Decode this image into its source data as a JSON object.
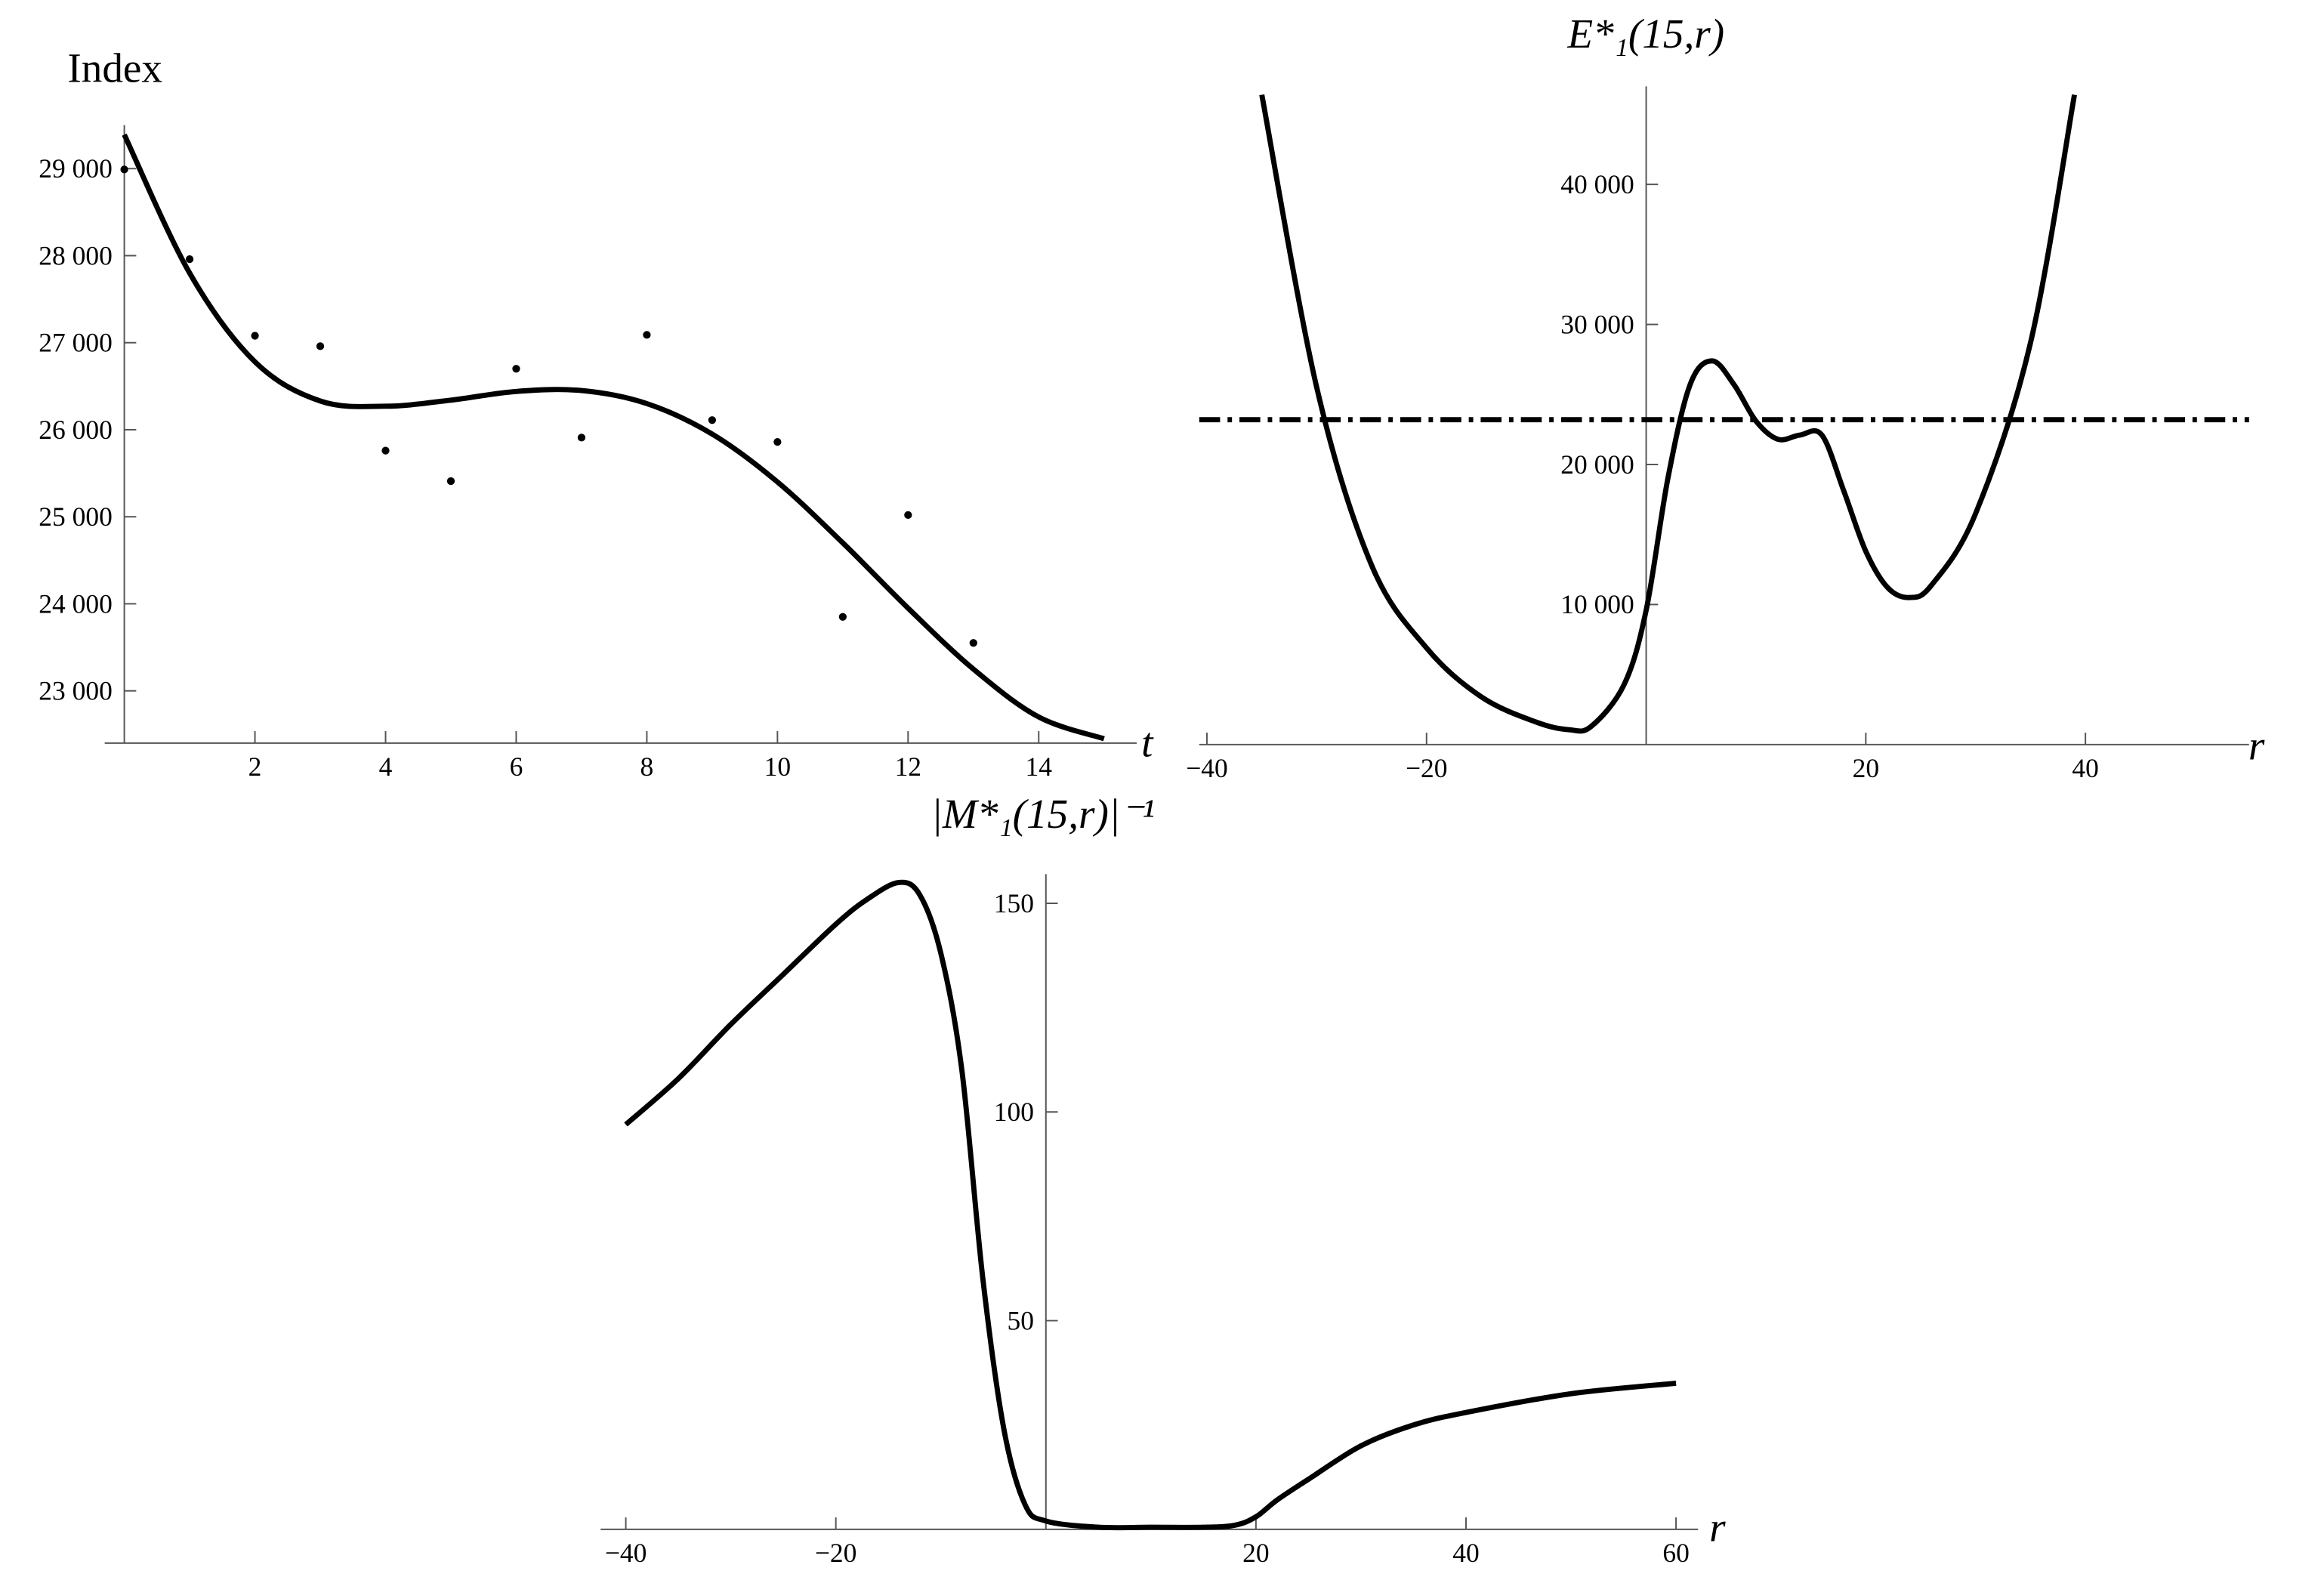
{
  "chart_data": [
    {
      "type": "scatter",
      "title": "Index",
      "x_label": "t",
      "xlim": [
        -0.3,
        15.5
      ],
      "ylim": [
        22400,
        29500
      ],
      "xticks": [
        2,
        4,
        6,
        8,
        10,
        12,
        14
      ],
      "yticks": [
        {
          "value": 23000,
          "label": "23 000"
        },
        {
          "value": 24000,
          "label": "24 000"
        },
        {
          "value": 25000,
          "label": "25 000"
        },
        {
          "value": 26000,
          "label": "26 000"
        },
        {
          "value": 27000,
          "label": "27 000"
        },
        {
          "value": 28000,
          "label": "28 000"
        },
        {
          "value": 29000,
          "label": "29 000"
        }
      ],
      "color": "#000000",
      "series": [
        {
          "type": "scatter",
          "x": [
            0,
            1,
            2,
            3,
            4,
            5,
            6,
            7,
            8,
            9,
            10,
            11,
            12,
            13
          ],
          "values": [
            28990,
            27960,
            27080,
            26960,
            25760,
            25410,
            26700,
            25910,
            27090,
            26110,
            25860,
            23850,
            25020,
            23550
          ]
        },
        {
          "type": "line",
          "x": [
            0,
            1,
            2,
            3,
            4,
            5,
            6,
            7,
            8,
            9,
            10,
            11,
            12,
            13,
            14,
            15
          ],
          "values": [
            29390,
            27800,
            26780,
            26330,
            26270,
            26340,
            26440,
            26450,
            26300,
            25950,
            25400,
            24700,
            23950,
            23250,
            22700,
            22450
          ]
        }
      ]
    },
    {
      "type": "line",
      "title": "E*₁(15,r)",
      "x_label": "r",
      "xlim": [
        -40.7,
        54.9
      ],
      "ylim": [
        0,
        47000
      ],
      "xticks": [
        {
          "value": -40,
          "label": "−40"
        },
        {
          "value": -20,
          "label": "−20"
        },
        20,
        40
      ],
      "yticks": [
        {
          "value": 10000,
          "label": "10 000"
        },
        {
          "value": 20000,
          "label": "20 000"
        },
        {
          "value": 30000,
          "label": "30 000"
        },
        {
          "value": 40000,
          "label": "40 000"
        }
      ],
      "color": "#000000",
      "hline": 23200,
      "series": [
        {
          "type": "line",
          "x": [
            -35,
            -30,
            -25,
            -20,
            -15,
            -10,
            -7,
            -5,
            -2,
            0,
            2,
            4,
            6,
            8,
            10,
            12,
            14,
            16,
            18,
            20,
            22,
            24,
            26,
            30,
            35,
            39
          ],
          "values": [
            46400,
            25500,
            12800,
            6900,
            3400,
            1600,
            1060,
            1300,
            4300,
            9600,
            19100,
            25700,
            27400,
            25700,
            23100,
            21800,
            22100,
            22100,
            18100,
            13800,
            11200,
            10500,
            11400,
            16500,
            28700,
            46400
          ]
        }
      ]
    },
    {
      "type": "line",
      "title": "|M*₁(15,r)|⁻¹",
      "x_label": "r",
      "xlim": [
        -42.4,
        62.1
      ],
      "ylim": [
        0,
        157
      ],
      "xticks": [
        {
          "value": -40,
          "label": "−40"
        },
        {
          "value": -20,
          "label": "−20"
        },
        20,
        40,
        60
      ],
      "yticks": [
        50,
        100,
        150
      ],
      "color": "#000000",
      "series": [
        {
          "type": "line",
          "x": [
            -40,
            -35,
            -30,
            -25,
            -20,
            -17,
            -14,
            -12,
            -10,
            -8,
            -6,
            -4,
            -2,
            0,
            5,
            10,
            15,
            18,
            20,
            22,
            25,
            30,
            35,
            40,
            50,
            60
          ],
          "values": [
            97,
            108,
            121,
            133,
            145,
            151,
            155,
            152,
            138,
            110,
            60,
            24,
            6,
            2,
            0.5,
            0.5,
            0.5,
            1,
            3,
            7,
            12,
            20,
            25,
            28,
            32.5,
            35
          ]
        }
      ]
    }
  ]
}
